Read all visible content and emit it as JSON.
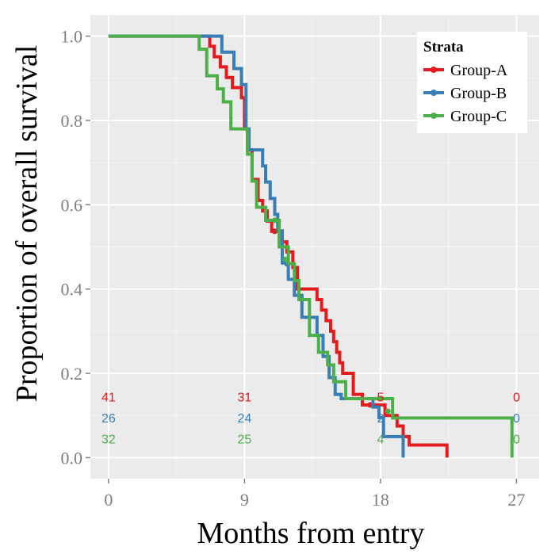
{
  "chart_data": {
    "type": "line",
    "step": true,
    "xlabel": "Months from entry",
    "ylabel": "Proportion of overall survival",
    "xlim": [
      -1.2,
      28.5
    ],
    "ylim": [
      -0.05,
      1.05
    ],
    "xticks": [
      0,
      9,
      18,
      27
    ],
    "yticks": [
      0.0,
      0.2,
      0.4,
      0.6,
      0.8,
      1.0
    ],
    "ytick_labels": [
      "0.0",
      "0.2",
      "0.4",
      "0.6",
      "0.8",
      "1.0"
    ],
    "grid": true,
    "legend": {
      "title": "Strata",
      "position": "top-right"
    },
    "series": [
      {
        "name": "Group-A",
        "color": "#e41a1c",
        "steps": [
          [
            0,
            1.0
          ],
          [
            6.7,
            0.976
          ],
          [
            7.0,
            0.951
          ],
          [
            7.4,
            0.927
          ],
          [
            7.8,
            0.902
          ],
          [
            8.2,
            0.878
          ],
          [
            8.8,
            0.854
          ],
          [
            9.0,
            0.78
          ],
          [
            9.2,
            0.73
          ],
          [
            9.5,
            0.66
          ],
          [
            9.9,
            0.61
          ],
          [
            10.2,
            0.585
          ],
          [
            10.5,
            0.561
          ],
          [
            10.8,
            0.537
          ],
          [
            11.3,
            0.512
          ],
          [
            11.8,
            0.488
          ],
          [
            12.2,
            0.451
          ],
          [
            12.5,
            0.4
          ],
          [
            13.8,
            0.375
          ],
          [
            14.1,
            0.35
          ],
          [
            14.4,
            0.325
          ],
          [
            14.7,
            0.3
          ],
          [
            14.9,
            0.275
          ],
          [
            15.1,
            0.25
          ],
          [
            15.3,
            0.225
          ],
          [
            15.5,
            0.2
          ],
          [
            16.2,
            0.15
          ],
          [
            16.8,
            0.125
          ],
          [
            18.3,
            0.1
          ],
          [
            19.1,
            0.075
          ],
          [
            19.5,
            0.05
          ],
          [
            19.9,
            0.03
          ],
          [
            22.4,
            0.0
          ]
        ],
        "censor": [
          [
            11.0,
            0.537
          ],
          [
            17.3,
            0.125
          ]
        ]
      },
      {
        "name": "Group-B",
        "color": "#377eb8",
        "steps": [
          [
            0,
            1.0
          ],
          [
            7.5,
            0.962
          ],
          [
            8.3,
            0.923
          ],
          [
            8.8,
            0.885
          ],
          [
            9.1,
            0.78
          ],
          [
            9.3,
            0.73
          ],
          [
            10.2,
            0.692
          ],
          [
            10.4,
            0.654
          ],
          [
            10.7,
            0.615
          ],
          [
            11.0,
            0.577
          ],
          [
            11.2,
            0.538
          ],
          [
            11.5,
            0.462
          ],
          [
            11.9,
            0.423
          ],
          [
            12.3,
            0.385
          ],
          [
            12.8,
            0.333
          ],
          [
            13.8,
            0.29
          ],
          [
            14.2,
            0.24
          ],
          [
            14.6,
            0.19
          ],
          [
            15.0,
            0.15
          ],
          [
            15.4,
            0.14
          ],
          [
            17.5,
            0.12
          ],
          [
            17.9,
            0.095
          ],
          [
            18.2,
            0.05
          ],
          [
            19.5,
            0.0
          ]
        ],
        "censor": [
          [
            11.8,
            0.46
          ]
        ]
      },
      {
        "name": "Group-C",
        "color": "#4daf4a",
        "steps": [
          [
            0,
            1.0
          ],
          [
            6.0,
            0.969
          ],
          [
            6.5,
            0.906
          ],
          [
            7.2,
            0.875
          ],
          [
            7.6,
            0.844
          ],
          [
            8.1,
            0.78
          ],
          [
            8.6,
            0.78
          ],
          [
            9.2,
            0.72
          ],
          [
            9.5,
            0.656
          ],
          [
            9.8,
            0.594
          ],
          [
            10.4,
            0.563
          ],
          [
            11.3,
            0.5
          ],
          [
            11.9,
            0.46
          ],
          [
            12.3,
            0.42
          ],
          [
            12.6,
            0.375
          ],
          [
            13.3,
            0.29
          ],
          [
            13.9,
            0.25
          ],
          [
            14.5,
            0.22
          ],
          [
            14.9,
            0.18
          ],
          [
            15.7,
            0.14
          ],
          [
            18.8,
            0.094
          ],
          [
            26.7,
            0.0
          ]
        ],
        "censor": [
          [
            11.0,
            0.563
          ],
          [
            11.7,
            0.47
          ],
          [
            18.0,
            0.14
          ],
          [
            18.5,
            0.11
          ]
        ]
      }
    ],
    "risk_table": {
      "times": [
        0,
        9,
        18,
        27
      ],
      "rows": [
        {
          "name": "Group-A",
          "color": "#e41a1c",
          "counts": [
            "41",
            "31",
            "5",
            "0"
          ]
        },
        {
          "name": "Group-B",
          "color": "#377eb8",
          "counts": [
            "26",
            "24",
            "2",
            "0"
          ]
        },
        {
          "name": "Group-C",
          "color": "#4daf4a",
          "counts": [
            "32",
            "25",
            "4",
            "0"
          ]
        }
      ]
    }
  }
}
